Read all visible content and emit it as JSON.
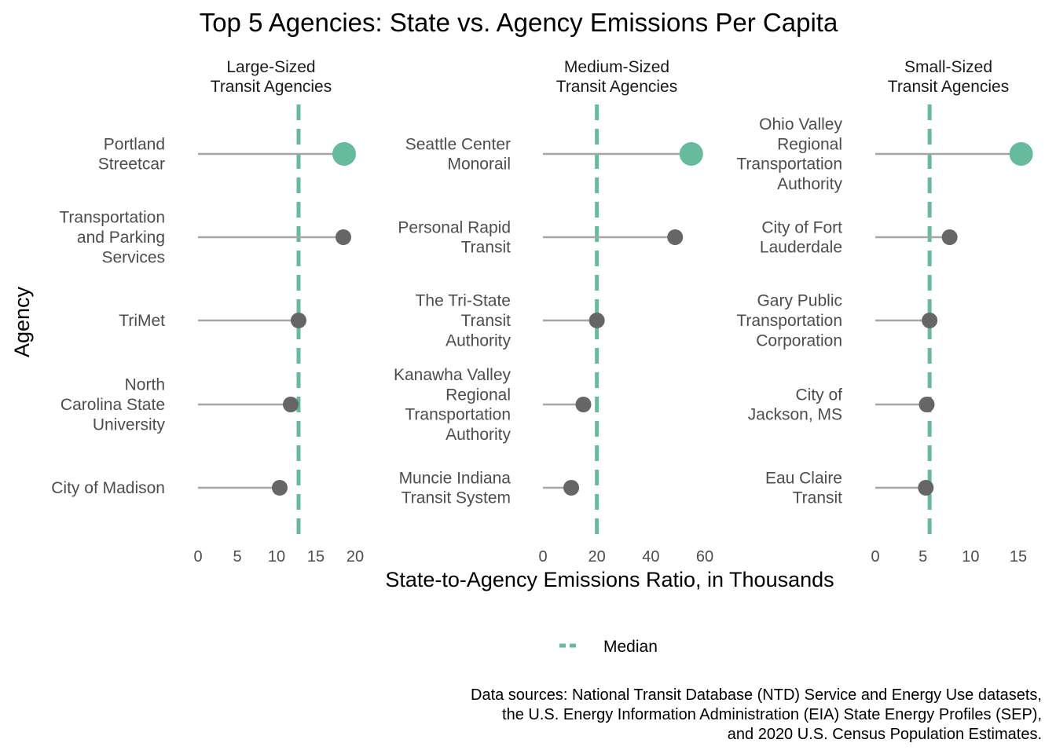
{
  "chart_data": {
    "type": "lollipop",
    "title": "Top 5 Agencies: State vs. Agency Emissions Per Capita",
    "xlabel": "State-to-Agency Emissions Ratio, in Thousands",
    "ylabel": "Agency",
    "legend": {
      "position": "bottom",
      "entries": [
        {
          "label": "Median",
          "color": "#66bb9c",
          "style": "dashed"
        }
      ]
    },
    "caption": [
      "Data sources: National Transit Database (NTD) Service and Energy Use datasets,",
      "the U.S. Energy Information Administration (EIA) State Energy Profiles (SEP),",
      "and 2020 U.S. Census Population Estimates."
    ],
    "colors": {
      "highlight": "#66bb9c",
      "point": "#666666",
      "stem": "#a6a6a6",
      "median": "#66bb9c"
    },
    "panels": [
      {
        "strip": [
          "Large-Sized",
          "Transit Agencies"
        ],
        "xlim": [
          0,
          20
        ],
        "ticks": [
          0,
          5,
          10,
          15,
          20
        ],
        "median": 12.8,
        "agencies": [
          {
            "label": [
              "Portland",
              "Streetcar"
            ],
            "value": 18.6,
            "highlight": true
          },
          {
            "label": [
              "Transportation",
              "and Parking",
              "Services"
            ],
            "value": 18.5,
            "highlight": false
          },
          {
            "label": [
              "TriMet"
            ],
            "value": 12.8,
            "highlight": false
          },
          {
            "label": [
              "North",
              "Carolina State",
              "University"
            ],
            "value": 11.8,
            "highlight": false
          },
          {
            "label": [
              "City of Madison"
            ],
            "value": 10.4,
            "highlight": false
          }
        ]
      },
      {
        "strip": [
          "Medium-Sized",
          "Transit Agencies"
        ],
        "xlim": [
          0,
          60
        ],
        "ticks": [
          0,
          20,
          40,
          60
        ],
        "median": 20,
        "agencies": [
          {
            "label": [
              "Seattle Center",
              "Monorail"
            ],
            "value": 55,
            "highlight": true
          },
          {
            "label": [
              "Personal Rapid",
              "Transit"
            ],
            "value": 49,
            "highlight": false
          },
          {
            "label": [
              "The Tri-State",
              "Transit",
              "Authority"
            ],
            "value": 20,
            "highlight": false
          },
          {
            "label": [
              "Kanawha Valley",
              "Regional",
              "Transportation",
              "Authority"
            ],
            "value": 15,
            "highlight": false
          },
          {
            "label": [
              "Muncie Indiana",
              "Transit System"
            ],
            "value": 10.5,
            "highlight": false
          }
        ]
      },
      {
        "strip": [
          "Small-Sized",
          "Transit Agencies"
        ],
        "xlim": [
          0,
          15
        ],
        "ticks": [
          0,
          5,
          10,
          15
        ],
        "median": 5.7,
        "agencies": [
          {
            "label": [
              "Ohio Valley",
              "Regional",
              "Transportation",
              "Authority"
            ],
            "value": 15.3,
            "highlight": true
          },
          {
            "label": [
              "City of Fort",
              "Lauderdale"
            ],
            "value": 7.8,
            "highlight": false
          },
          {
            "label": [
              "Gary Public",
              "Transportation",
              "Corporation"
            ],
            "value": 5.7,
            "highlight": false
          },
          {
            "label": [
              "City of",
              "Jackson, MS"
            ],
            "value": 5.4,
            "highlight": false
          },
          {
            "label": [
              "Eau Claire",
              "Transit"
            ],
            "value": 5.3,
            "highlight": false
          }
        ]
      }
    ]
  }
}
